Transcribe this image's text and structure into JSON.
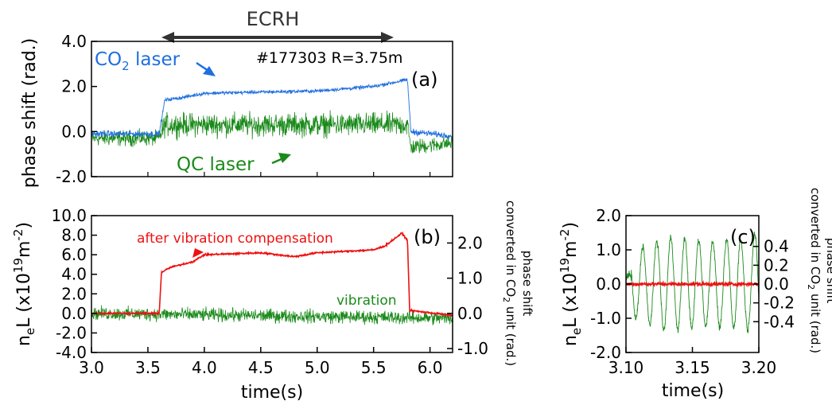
{
  "colors": {
    "co2": "#1f6fe0",
    "qc": "#1a8a1a",
    "red": "#ee1111",
    "axis": "#000000",
    "arrow": "#333333"
  },
  "chart_data": [
    {
      "id": "a",
      "type": "line",
      "panel_label": "(a)",
      "ylabel": "phase shift (rad.)",
      "xlim": [
        3.0,
        6.2
      ],
      "ylim": [
        -2.0,
        4.0
      ],
      "yticks": [
        "-2.0",
        "0.0",
        "2.0",
        "4.0"
      ],
      "annotation_ecrh": "ECRH",
      "ecrh_range": [
        3.6,
        5.6
      ],
      "shot_info": "#177303  R=3.75m",
      "label_co2_prefix": "CO",
      "label_co2_sub": "2",
      "label_co2_suffix": " laser",
      "label_qc": "QC laser",
      "series": [
        {
          "name": "CO2 laser",
          "color": "#1f6fe0",
          "x": [
            3.0,
            3.6,
            3.65,
            3.8,
            4.0,
            4.5,
            5.0,
            5.5,
            5.8,
            5.83,
            6.2
          ],
          "values": [
            -0.1,
            -0.1,
            1.4,
            1.5,
            1.7,
            1.75,
            1.8,
            2.0,
            2.3,
            0.0,
            -0.2
          ]
        },
        {
          "name": "QC laser",
          "color": "#1a8a1a",
          "x": [
            3.0,
            3.6,
            3.65,
            4.0,
            4.5,
            5.0,
            5.5,
            5.8,
            5.83,
            6.2
          ],
          "values": [
            -0.3,
            -0.3,
            0.3,
            0.3,
            0.3,
            0.3,
            0.3,
            0.3,
            -0.7,
            -0.5
          ]
        }
      ]
    },
    {
      "id": "b",
      "type": "line",
      "panel_label": "(b)",
      "xlabel": "time(s)",
      "xlim": [
        3.0,
        6.2
      ],
      "xticks": [
        "3.0",
        "3.5",
        "4.0",
        "4.5",
        "5.0",
        "5.5",
        "6.0"
      ],
      "ylim": [
        -4.0,
        10.0
      ],
      "yticks": [
        "-4.0",
        "-2.0",
        "0.0",
        "2.0",
        "4.0",
        "6.0",
        "8.0",
        "10.0"
      ],
      "y2ticks": [
        "-1.0",
        "0.0",
        "1.0",
        "2.0"
      ],
      "ylabel_parts": [
        "n",
        "e",
        "L (x10",
        "19",
        "m",
        "-2",
        ")"
      ],
      "y2label_line1": "phase shift",
      "y2label_line2_parts": [
        "converted in CO",
        "2",
        " unit (rad.)"
      ],
      "label_red": "after vibration compensation",
      "label_green": "vibration",
      "series": [
        {
          "name": "after vibration compensation",
          "color": "#ee1111",
          "x": [
            3.0,
            3.6,
            3.62,
            3.7,
            3.9,
            4.0,
            4.5,
            4.8,
            5.0,
            5.5,
            5.6,
            5.75,
            5.8,
            5.82,
            6.2
          ],
          "values": [
            0.0,
            0.0,
            4.2,
            4.7,
            5.3,
            6.0,
            6.2,
            5.8,
            6.2,
            6.5,
            6.9,
            8.2,
            7.5,
            0.3,
            -0.2
          ]
        },
        {
          "name": "vibration",
          "color": "#1a8a1a",
          "x": [
            3.0,
            6.2
          ],
          "values": [
            0.0,
            -0.5
          ]
        }
      ]
    },
    {
      "id": "c",
      "type": "line",
      "panel_label": "(c)",
      "xlabel": "time(s)",
      "xlim": [
        3.1,
        3.2
      ],
      "xticks": [
        "3.10",
        "3.15",
        "3.20"
      ],
      "ylim": [
        -2.0,
        2.0
      ],
      "yticks": [
        "-2.0",
        "-1.0",
        "0.0",
        "1.0",
        "2.0"
      ],
      "y2ticks": [
        "-0.4",
        "-0.2",
        "0.0",
        "0.2",
        "0.4"
      ],
      "ylabel_parts": [
        "n",
        "e",
        "L (x10",
        "19",
        "m",
        "-2",
        ")"
      ],
      "y2label_line1": "phase shift",
      "y2label_line2_parts": [
        "converted in CO",
        "2",
        " unit (rad.)"
      ],
      "series": [
        {
          "name": "after vibration compensation",
          "color": "#ee1111",
          "x": [
            3.1,
            3.2
          ],
          "values": [
            0.0,
            0.0
          ]
        },
        {
          "name": "vibration",
          "color": "#1a8a1a",
          "x": [
            3.1,
            3.13,
            3.16,
            3.19,
            3.2
          ],
          "values": [
            0.0,
            1.2,
            -0.9,
            1.0,
            -1.6
          ]
        }
      ]
    }
  ]
}
